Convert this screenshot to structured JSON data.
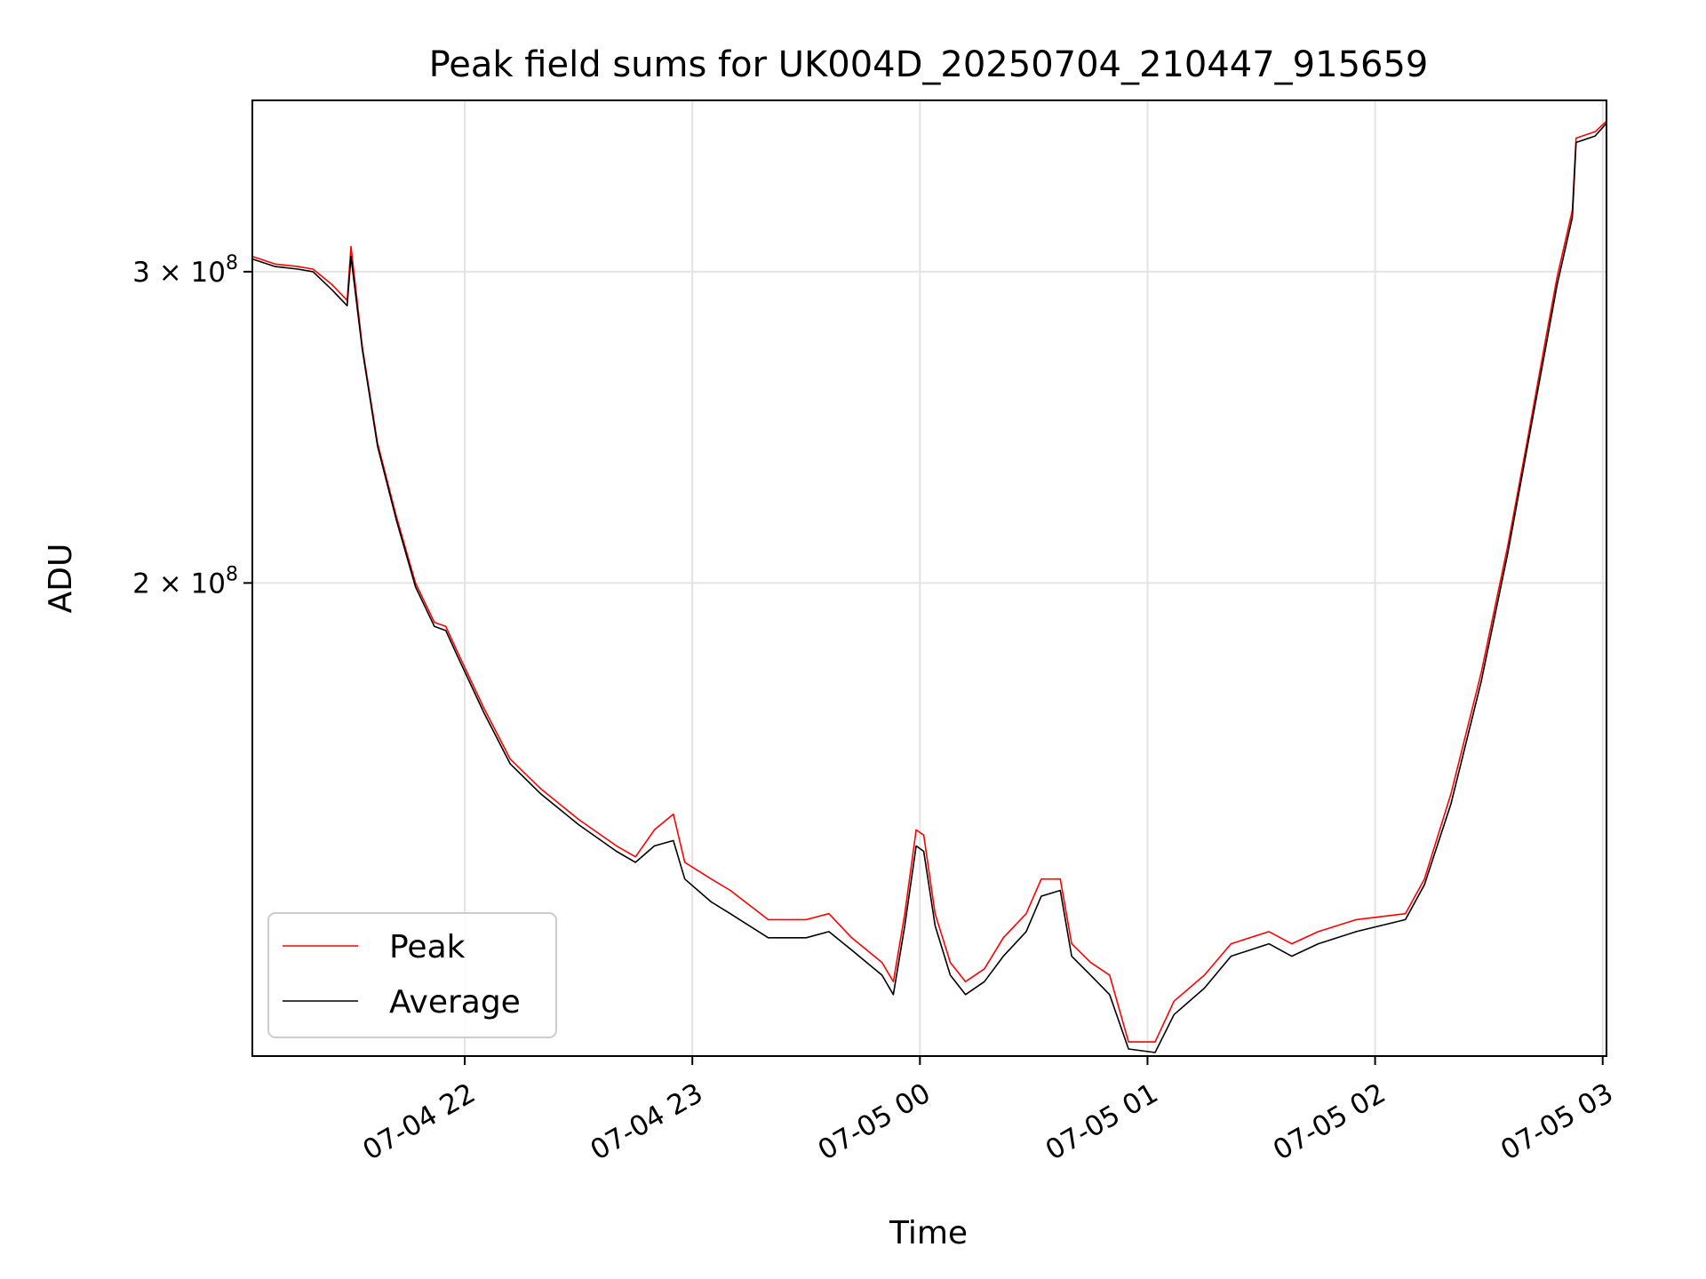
{
  "chart_data": {
    "type": "line",
    "title": "Peak field sums for UK004D_20250704_210447_915659",
    "xlabel": "Time",
    "ylabel": "ADU",
    "y_scale": "log",
    "ylim": [
      108000000,
      375000000
    ],
    "xlim": [
      "2025-07-04 21:04",
      "2025-07-05 03:01"
    ],
    "x_ticks": [
      {
        "value": "2025-07-04 22:00",
        "label": "07-04 22"
      },
      {
        "value": "2025-07-04 23:00",
        "label": "07-04 23"
      },
      {
        "value": "2025-07-05 00:00",
        "label": "07-05 00"
      },
      {
        "value": "2025-07-05 01:00",
        "label": "07-05 01"
      },
      {
        "value": "2025-07-05 02:00",
        "label": "07-05 02"
      },
      {
        "value": "2025-07-05 03:00",
        "label": "07-05 03"
      }
    ],
    "y_ticks": [
      {
        "value": 200000000,
        "label_base": "2 × 10",
        "label_exp": "8"
      },
      {
        "value": 300000000,
        "label_base": "3 × 10",
        "label_exp": "8"
      }
    ],
    "grid": true,
    "legend_position": "lower-left",
    "series": [
      {
        "name": "Peak",
        "color": "#ff0000",
        "points": [
          [
            "2025-07-04 21:04",
            306000000
          ],
          [
            "2025-07-04 21:10",
            303000000
          ],
          [
            "2025-07-04 21:16",
            302000000
          ],
          [
            "2025-07-04 21:20",
            301000000
          ],
          [
            "2025-07-04 21:25",
            295000000
          ],
          [
            "2025-07-04 21:29",
            289000000
          ],
          [
            "2025-07-04 21:30",
            310000000
          ],
          [
            "2025-07-04 21:33",
            272000000
          ],
          [
            "2025-07-04 21:37",
            240000000
          ],
          [
            "2025-07-04 21:42",
            218000000
          ],
          [
            "2025-07-04 21:47",
            200000000
          ],
          [
            "2025-07-04 21:52",
            190000000
          ],
          [
            "2025-07-04 21:55",
            189000000
          ],
          [
            "2025-07-04 21:58",
            183000000
          ],
          [
            "2025-07-04 22:05",
            170000000
          ],
          [
            "2025-07-04 22:12",
            159000000
          ],
          [
            "2025-07-04 22:20",
            153000000
          ],
          [
            "2025-07-04 22:30",
            147000000
          ],
          [
            "2025-07-04 22:40",
            142000000
          ],
          [
            "2025-07-04 22:45",
            140000000
          ],
          [
            "2025-07-04 22:50",
            145000000
          ],
          [
            "2025-07-04 22:55",
            148000000
          ],
          [
            "2025-07-04 22:58",
            139000000
          ],
          [
            "2025-07-04 23:05",
            136000000
          ],
          [
            "2025-07-04 23:10",
            134000000
          ],
          [
            "2025-07-04 23:20",
            129000000
          ],
          [
            "2025-07-04 23:30",
            129000000
          ],
          [
            "2025-07-04 23:36",
            130000000
          ],
          [
            "2025-07-04 23:42",
            126000000
          ],
          [
            "2025-07-04 23:50",
            122000000
          ],
          [
            "2025-07-04 23:53",
            119000000
          ],
          [
            "2025-07-04 23:56",
            130000000
          ],
          [
            "2025-07-04 23:59",
            145000000
          ],
          [
            "2025-07-05 00:01",
            144000000
          ],
          [
            "2025-07-05 00:04",
            130000000
          ],
          [
            "2025-07-05 00:08",
            122000000
          ],
          [
            "2025-07-05 00:12",
            119000000
          ],
          [
            "2025-07-05 00:17",
            121000000
          ],
          [
            "2025-07-05 00:22",
            126000000
          ],
          [
            "2025-07-05 00:28",
            130000000
          ],
          [
            "2025-07-05 00:32",
            136000000
          ],
          [
            "2025-07-05 00:37",
            136000000
          ],
          [
            "2025-07-05 00:40",
            125000000
          ],
          [
            "2025-07-05 00:45",
            122000000
          ],
          [
            "2025-07-05 00:50",
            120000000
          ],
          [
            "2025-07-05 00:55",
            110000000
          ],
          [
            "2025-07-05 01:02",
            110000000
          ],
          [
            "2025-07-05 01:07",
            116000000
          ],
          [
            "2025-07-05 01:15",
            120000000
          ],
          [
            "2025-07-05 01:22",
            125000000
          ],
          [
            "2025-07-05 01:32",
            127000000
          ],
          [
            "2025-07-05 01:38",
            125000000
          ],
          [
            "2025-07-05 01:45",
            127000000
          ],
          [
            "2025-07-05 01:55",
            129000000
          ],
          [
            "2025-07-05 02:08",
            130000000
          ],
          [
            "2025-07-05 02:13",
            136000000
          ],
          [
            "2025-07-05 02:20",
            152000000
          ],
          [
            "2025-07-05 02:28",
            178000000
          ],
          [
            "2025-07-05 02:35",
            210000000
          ],
          [
            "2025-07-05 02:40",
            240000000
          ],
          [
            "2025-07-05 02:45",
            275000000
          ],
          [
            "2025-07-05 02:48",
            298000000
          ],
          [
            "2025-07-05 02:52",
            325000000
          ],
          [
            "2025-07-05 02:53",
            357000000
          ],
          [
            "2025-07-05 02:58",
            360000000
          ],
          [
            "2025-07-05 03:01",
            365000000
          ]
        ]
      },
      {
        "name": "Average",
        "color": "#000000",
        "points": [
          [
            "2025-07-04 21:04",
            305000000
          ],
          [
            "2025-07-04 21:10",
            302000000
          ],
          [
            "2025-07-04 21:16",
            301000000
          ],
          [
            "2025-07-04 21:20",
            300000000
          ],
          [
            "2025-07-04 21:25",
            293000000
          ],
          [
            "2025-07-04 21:29",
            287000000
          ],
          [
            "2025-07-04 21:30",
            306000000
          ],
          [
            "2025-07-04 21:33",
            271000000
          ],
          [
            "2025-07-04 21:37",
            239000000
          ],
          [
            "2025-07-04 21:42",
            217000000
          ],
          [
            "2025-07-04 21:47",
            199000000
          ],
          [
            "2025-07-04 21:52",
            189000000
          ],
          [
            "2025-07-04 21:55",
            188000000
          ],
          [
            "2025-07-04 21:58",
            182000000
          ],
          [
            "2025-07-04 22:05",
            169000000
          ],
          [
            "2025-07-04 22:12",
            158000000
          ],
          [
            "2025-07-04 22:20",
            152000000
          ],
          [
            "2025-07-04 22:30",
            146000000
          ],
          [
            "2025-07-04 22:40",
            141000000
          ],
          [
            "2025-07-04 22:45",
            139000000
          ],
          [
            "2025-07-04 22:50",
            142000000
          ],
          [
            "2025-07-04 22:55",
            143000000
          ],
          [
            "2025-07-04 22:58",
            136000000
          ],
          [
            "2025-07-04 23:05",
            132000000
          ],
          [
            "2025-07-04 23:10",
            130000000
          ],
          [
            "2025-07-04 23:20",
            126000000
          ],
          [
            "2025-07-04 23:30",
            126000000
          ],
          [
            "2025-07-04 23:36",
            127000000
          ],
          [
            "2025-07-04 23:42",
            124000000
          ],
          [
            "2025-07-04 23:50",
            120000000
          ],
          [
            "2025-07-04 23:53",
            117000000
          ],
          [
            "2025-07-04 23:56",
            128000000
          ],
          [
            "2025-07-04 23:59",
            142000000
          ],
          [
            "2025-07-05 00:01",
            141000000
          ],
          [
            "2025-07-05 00:04",
            128000000
          ],
          [
            "2025-07-05 00:08",
            120000000
          ],
          [
            "2025-07-05 00:12",
            117000000
          ],
          [
            "2025-07-05 00:17",
            119000000
          ],
          [
            "2025-07-05 00:22",
            123000000
          ],
          [
            "2025-07-05 00:28",
            127000000
          ],
          [
            "2025-07-05 00:32",
            133000000
          ],
          [
            "2025-07-05 00:37",
            134000000
          ],
          [
            "2025-07-05 00:40",
            123000000
          ],
          [
            "2025-07-05 00:45",
            120000000
          ],
          [
            "2025-07-05 00:50",
            117000000
          ],
          [
            "2025-07-05 00:55",
            109000000
          ],
          [
            "2025-07-05 01:02",
            108500000
          ],
          [
            "2025-07-05 01:07",
            114000000
          ],
          [
            "2025-07-05 01:15",
            118000000
          ],
          [
            "2025-07-05 01:22",
            123000000
          ],
          [
            "2025-07-05 01:32",
            125000000
          ],
          [
            "2025-07-05 01:38",
            123000000
          ],
          [
            "2025-07-05 01:45",
            125000000
          ],
          [
            "2025-07-05 01:55",
            127000000
          ],
          [
            "2025-07-05 02:08",
            129000000
          ],
          [
            "2025-07-05 02:13",
            135000000
          ],
          [
            "2025-07-05 02:20",
            150000000
          ],
          [
            "2025-07-05 02:28",
            176000000
          ],
          [
            "2025-07-05 02:35",
            208000000
          ],
          [
            "2025-07-05 02:40",
            238000000
          ],
          [
            "2025-07-05 02:45",
            272000000
          ],
          [
            "2025-07-05 02:48",
            295000000
          ],
          [
            "2025-07-05 02:52",
            322000000
          ],
          [
            "2025-07-05 02:53",
            355000000
          ],
          [
            "2025-07-05 02:58",
            358000000
          ],
          [
            "2025-07-05 03:01",
            364000000
          ]
        ]
      }
    ]
  }
}
